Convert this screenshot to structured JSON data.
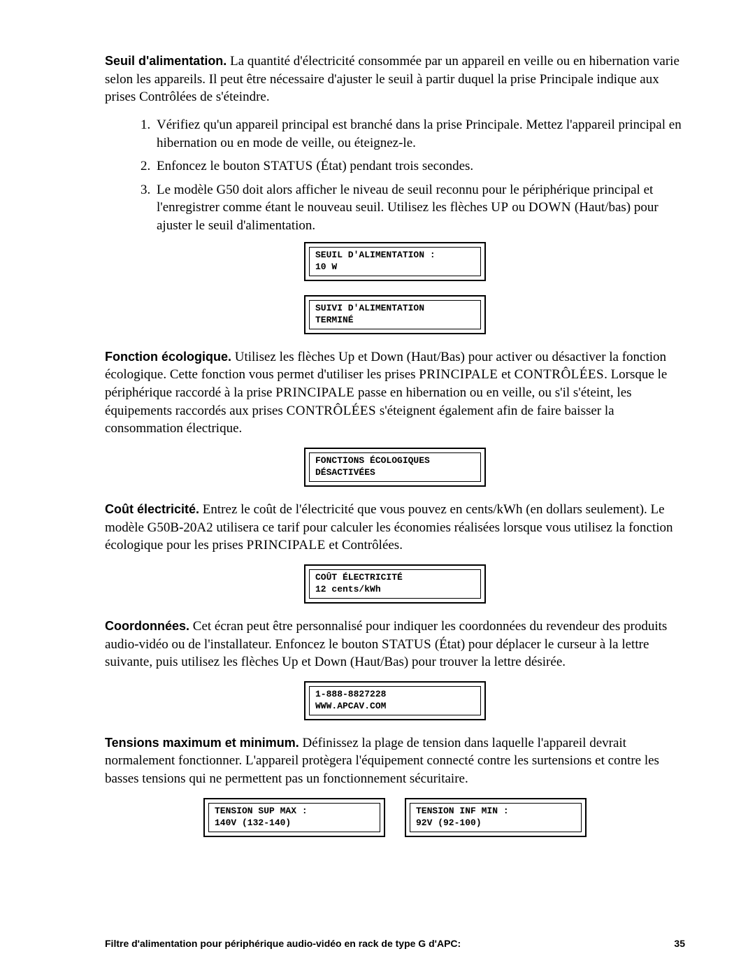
{
  "sections": {
    "seuil": {
      "heading": "Seuil d'alimentation.",
      "text": " La quantité d'électricité consommée par un appareil en veille ou en hibernation varie selon les appareils. Il peut être nécessaire d'ajuster le seuil à partir duquel la prise Principale indique aux prises Contrôlées de s'éteindre.",
      "steps": [
        {
          "pre": "Vérifiez qu'un appareil principal est branché dans la prise Principale. Mettez l'appareil principal en hibernation ou en mode de veille, ou éteignez-le."
        },
        {
          "pre": "Enfoncez le bouton ",
          "sc": "STATUS",
          "post": " (État) pendant trois secondes."
        },
        {
          "pre": "Le modèle G50 doit alors afficher le niveau de seuil reconnu pour le périphérique principal et l'enregistrer comme étant le nouveau seuil. Utilisez les flèches ",
          "sc": "UP",
          "mid": " ou ",
          "sc2": "DOWN",
          "post": " (Haut/bas) pour ajuster le seuil d'alimentation."
        }
      ],
      "lcd1_line1": "SEUIL D'ALIMENTATION :",
      "lcd1_line2": "10 W",
      "lcd2_line1": "SUIVI D'ALIMENTATION",
      "lcd2_line2": "TERMINÉ"
    },
    "eco": {
      "heading": "Fonction écologique.",
      "text_parts": {
        "p1": " Utilisez les flèches Up et Down (Haut/Bas) pour activer ou désactiver la fonction écologique. Cette fonction vous permet d'utiliser les prises ",
        "sc1": "PRINCIPALE",
        "p2": " et ",
        "sc2": "CONTRÔLÉES",
        "p3": ". Lorsque le périphérique raccordé à la prise ",
        "sc3": "PRINCIPALE",
        "p4": " passe en hibernation ou en veille, ou s'il s'éteint, les équipements raccordés aux prises ",
        "sc4": "CONTRÔLÉES",
        "p5": " s'éteignent également afin de faire baisser la consommation électrique."
      },
      "lcd_line1": "FONCTIONS ÉCOLOGIQUES",
      "lcd_line2": "DÉSACTIVÉES"
    },
    "cout": {
      "heading": "Coût électricité.",
      "text_parts": {
        "p1": " Entrez le coût de l'électricité que vous pouvez en cents/kWh (en dollars seulement). Le modèle G50B-20A2 utilisera ce tarif pour calculer les économies réalisées lorsque vous utilisez la fonction écologique pour les prises ",
        "sc1": "PRINCIPALE",
        "p2": " et Contrôlées."
      },
      "lcd_line1": "COÛT ÉLECTRICITÉ",
      "lcd_line2": "12 cents/kWh"
    },
    "coord": {
      "heading": "Coordonnées.",
      "text_parts": {
        "p1": " Cet écran peut être personnalisé pour indiquer les coordonnées du revendeur des produits audio-vidéo ou de l'installateur. Enfoncez le bouton ",
        "sc1": "STATUS",
        "p2": " (État) pour déplacer le curseur à la lettre suivante, puis utilisez les flèches Up et Down (Haut/Bas) pour trouver la lettre désirée."
      },
      "lcd_line1": "1-888-8827228",
      "lcd_line2": "WWW.APCAV.COM"
    },
    "tensions": {
      "heading": "Tensions maximum et minimum.",
      "text": " Définissez la plage de tension dans laquelle l'appareil devrait normalement fonctionner. L'appareil protègera l'équipement connecté contre les surtensions et contre les basses tensions qui ne permettent pas un fonctionnement sécuritaire.",
      "lcd_max_line1": "TENSION SUP MAX :",
      "lcd_max_line2": "140V (132-140)",
      "lcd_min_line1": "TENSION INF MIN :",
      "lcd_min_line2": "92V (92-100)"
    }
  },
  "footer": {
    "title": "Filtre d'alimentation pour périphérique audio-vidéo en rack de type G d'APC:",
    "page": "35"
  }
}
